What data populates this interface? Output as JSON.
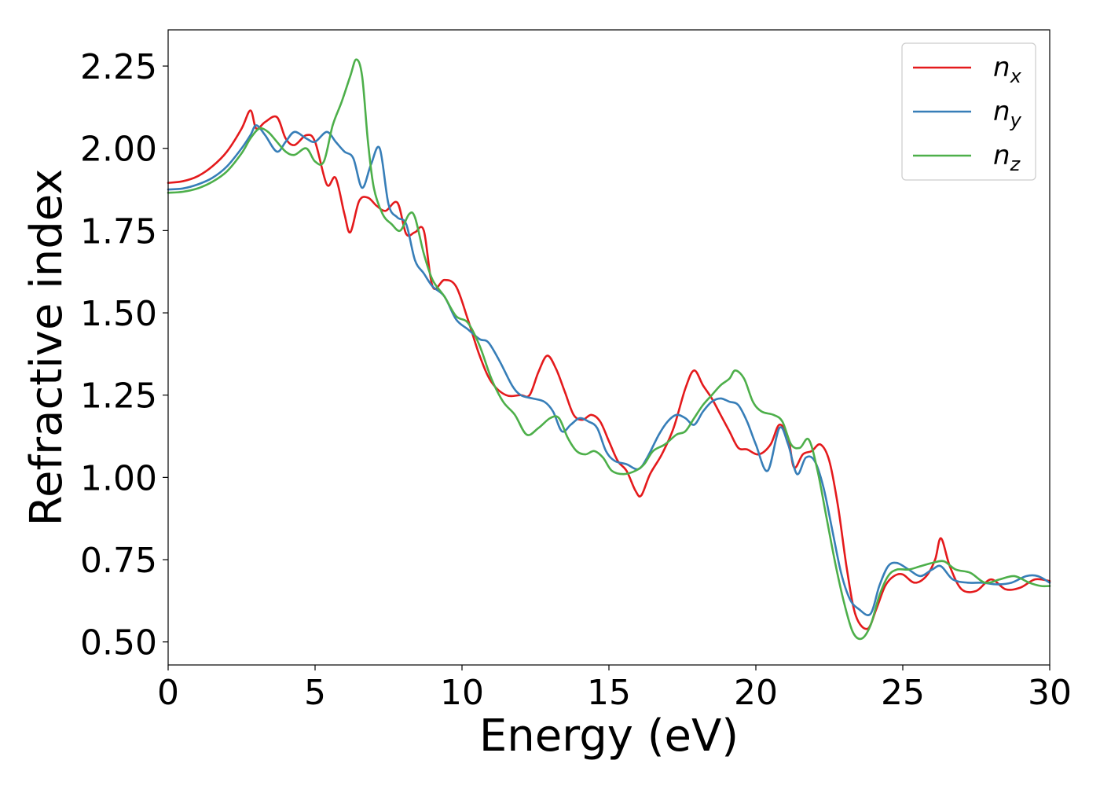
{
  "chart_data": {
    "type": "line",
    "title": "",
    "xlabel": "Energy (eV)",
    "ylabel": "Refractive index",
    "xlim": [
      0,
      30
    ],
    "ylim": [
      0.43,
      2.36
    ],
    "xticks": [
      0,
      5,
      10,
      15,
      20,
      25,
      30
    ],
    "xtick_labels": [
      "0",
      "5",
      "10",
      "15",
      "20",
      "25",
      "30"
    ],
    "yticks": [
      0.5,
      0.75,
      1.0,
      1.25,
      1.5,
      1.75,
      2.0,
      2.25
    ],
    "ytick_labels": [
      "0.50",
      "0.75",
      "1.00",
      "1.25",
      "1.50",
      "1.75",
      "2.00",
      "2.25"
    ],
    "grid": false,
    "legend_position": "top-right",
    "series": [
      {
        "name": "n",
        "subscript": "x",
        "color": "#e41a1c",
        "x": [
          0,
          0.5,
          1,
          1.5,
          2,
          2.5,
          2.8,
          3.0,
          3.3,
          3.7,
          4.0,
          4.3,
          4.7,
          5.0,
          5.4,
          5.7,
          6.0,
          6.2,
          6.5,
          6.8,
          7.1,
          7.4,
          7.8,
          8.1,
          8.4,
          8.7,
          9.0,
          9.4,
          9.8,
          10.2,
          10.6,
          11.0,
          11.5,
          12.0,
          12.3,
          12.6,
          12.9,
          13.2,
          13.5,
          13.8,
          14.1,
          14.4,
          14.7,
          15.0,
          15.3,
          15.6,
          15.9,
          16.1,
          16.4,
          16.8,
          17.2,
          17.6,
          17.9,
          18.2,
          18.5,
          18.8,
          19.1,
          19.4,
          19.7,
          20.1,
          20.5,
          20.8,
          21.1,
          21.3,
          21.6,
          21.9,
          22.2,
          22.5,
          22.8,
          23.1,
          23.4,
          23.8,
          24.1,
          24.4,
          24.7,
          25.0,
          25.4,
          25.8,
          26.1,
          26.3,
          26.6,
          27.0,
          27.5,
          28.0,
          28.5,
          29.0,
          29.5,
          30.0
        ],
        "y": [
          1.895,
          1.9,
          1.915,
          1.945,
          1.99,
          2.06,
          2.115,
          2.06,
          2.08,
          2.095,
          2.03,
          2.01,
          2.04,
          2.02,
          1.89,
          1.91,
          1.8,
          1.745,
          1.84,
          1.85,
          1.825,
          1.81,
          1.835,
          1.74,
          1.745,
          1.75,
          1.58,
          1.6,
          1.58,
          1.48,
          1.37,
          1.29,
          1.25,
          1.25,
          1.25,
          1.32,
          1.37,
          1.33,
          1.26,
          1.19,
          1.175,
          1.19,
          1.17,
          1.11,
          1.05,
          1.02,
          0.96,
          0.945,
          1.01,
          1.07,
          1.15,
          1.27,
          1.325,
          1.28,
          1.24,
          1.19,
          1.14,
          1.09,
          1.085,
          1.07,
          1.1,
          1.16,
          1.12,
          1.03,
          1.07,
          1.08,
          1.1,
          1.05,
          0.91,
          0.72,
          0.58,
          0.54,
          0.6,
          0.67,
          0.7,
          0.705,
          0.68,
          0.7,
          0.75,
          0.815,
          0.73,
          0.66,
          0.655,
          0.69,
          0.66,
          0.665,
          0.69,
          0.685
        ]
      },
      {
        "name": "n",
        "subscript": "y",
        "color": "#377eb8",
        "x": [
          0,
          0.5,
          1,
          1.5,
          2,
          2.5,
          2.8,
          3.0,
          3.3,
          3.7,
          4.0,
          4.3,
          4.7,
          5.0,
          5.4,
          5.7,
          6.0,
          6.3,
          6.6,
          6.9,
          7.2,
          7.5,
          7.8,
          8.1,
          8.4,
          8.7,
          9.0,
          9.4,
          9.8,
          10.2,
          10.6,
          10.9,
          11.3,
          11.7,
          12.0,
          12.4,
          12.8,
          13.1,
          13.4,
          13.7,
          14.0,
          14.3,
          14.6,
          14.9,
          15.2,
          15.6,
          16.0,
          16.3,
          16.7,
          17.0,
          17.3,
          17.6,
          17.9,
          18.2,
          18.5,
          18.8,
          19.1,
          19.4,
          19.7,
          20.0,
          20.4,
          20.8,
          21.1,
          21.4,
          21.7,
          22.0,
          22.3,
          22.6,
          22.9,
          23.2,
          23.5,
          23.9,
          24.2,
          24.5,
          24.8,
          25.2,
          25.6,
          26.0,
          26.3,
          26.7,
          27.2,
          27.7,
          28.2,
          28.7,
          29.2,
          29.6,
          30.0
        ],
        "y": [
          1.875,
          1.878,
          1.89,
          1.91,
          1.945,
          2.0,
          2.04,
          2.07,
          2.04,
          1.99,
          2.02,
          2.05,
          2.03,
          2.02,
          2.05,
          2.02,
          1.99,
          1.97,
          1.88,
          1.95,
          2.0,
          1.83,
          1.79,
          1.77,
          1.66,
          1.62,
          1.58,
          1.55,
          1.48,
          1.45,
          1.42,
          1.41,
          1.35,
          1.28,
          1.25,
          1.24,
          1.23,
          1.2,
          1.14,
          1.16,
          1.18,
          1.17,
          1.15,
          1.08,
          1.05,
          1.04,
          1.025,
          1.06,
          1.13,
          1.17,
          1.19,
          1.18,
          1.16,
          1.2,
          1.23,
          1.24,
          1.23,
          1.22,
          1.17,
          1.1,
          1.02,
          1.15,
          1.1,
          1.01,
          1.06,
          1.05,
          0.97,
          0.84,
          0.71,
          0.63,
          0.6,
          0.585,
          0.67,
          0.73,
          0.74,
          0.72,
          0.7,
          0.72,
          0.73,
          0.69,
          0.68,
          0.68,
          0.675,
          0.68,
          0.7,
          0.7,
          0.68
        ]
      },
      {
        "name": "n",
        "subscript": "z",
        "color": "#4daf4a",
        "x": [
          0,
          0.5,
          1,
          1.5,
          2,
          2.5,
          2.8,
          3.1,
          3.4,
          3.7,
          4.0,
          4.3,
          4.7,
          5.0,
          5.3,
          5.6,
          5.9,
          6.2,
          6.4,
          6.6,
          6.8,
          7.0,
          7.3,
          7.6,
          7.9,
          8.2,
          8.4,
          8.7,
          9.0,
          9.4,
          9.8,
          10.2,
          10.6,
          11.0,
          11.4,
          11.8,
          12.2,
          12.6,
          13.0,
          13.3,
          13.6,
          13.9,
          14.2,
          14.5,
          14.8,
          15.1,
          15.5,
          15.9,
          16.2,
          16.5,
          16.9,
          17.3,
          17.6,
          17.9,
          18.2,
          18.5,
          18.8,
          19.1,
          19.3,
          19.6,
          19.9,
          20.2,
          20.6,
          20.9,
          21.2,
          21.5,
          21.8,
          22.1,
          22.4,
          22.7,
          23.0,
          23.3,
          23.6,
          23.9,
          24.2,
          24.5,
          24.8,
          25.2,
          25.6,
          26.0,
          26.4,
          26.8,
          27.3,
          27.8,
          28.3,
          28.8,
          29.3,
          29.7,
          30.0
        ],
        "y": [
          1.865,
          1.868,
          1.878,
          1.898,
          1.93,
          1.985,
          2.03,
          2.06,
          2.05,
          2.02,
          1.99,
          1.98,
          2.0,
          1.96,
          1.96,
          2.07,
          2.14,
          2.22,
          2.27,
          2.22,
          2.02,
          1.88,
          1.8,
          1.77,
          1.75,
          1.8,
          1.79,
          1.68,
          1.6,
          1.55,
          1.49,
          1.47,
          1.4,
          1.3,
          1.23,
          1.19,
          1.13,
          1.15,
          1.18,
          1.18,
          1.12,
          1.08,
          1.07,
          1.08,
          1.06,
          1.02,
          1.01,
          1.02,
          1.04,
          1.08,
          1.1,
          1.13,
          1.14,
          1.18,
          1.22,
          1.25,
          1.28,
          1.3,
          1.325,
          1.3,
          1.23,
          1.2,
          1.19,
          1.17,
          1.1,
          1.09,
          1.115,
          1.02,
          0.88,
          0.74,
          0.62,
          0.53,
          0.51,
          0.55,
          0.64,
          0.7,
          0.72,
          0.72,
          0.73,
          0.74,
          0.745,
          0.72,
          0.71,
          0.68,
          0.69,
          0.7,
          0.68,
          0.67,
          0.67
        ]
      }
    ]
  }
}
